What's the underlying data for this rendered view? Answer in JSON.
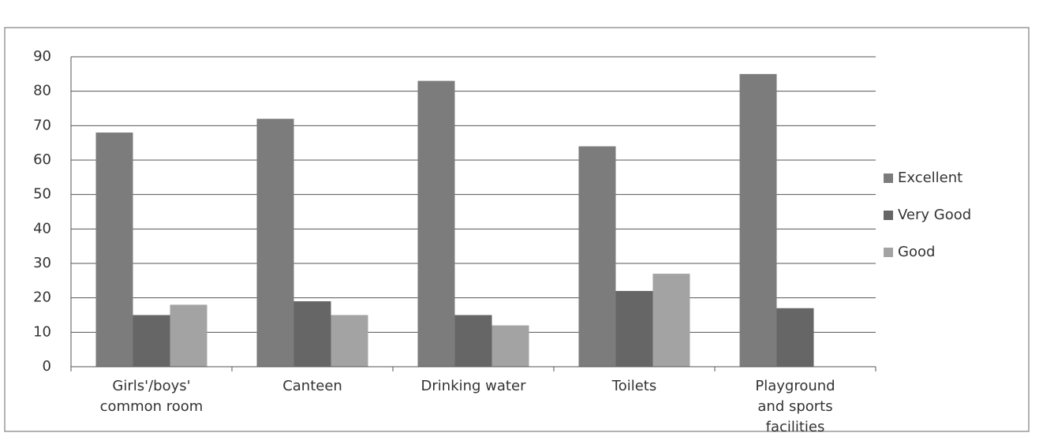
{
  "chart_data": {
    "type": "bar",
    "categories": [
      "Girls'/boys' common room",
      "Canteen",
      "Drinking water",
      "Toilets",
      "Playground and sports facilities"
    ],
    "series": [
      {
        "name": "Excellent",
        "color": "#7c7c7c",
        "values": [
          68,
          72,
          83,
          64,
          85
        ]
      },
      {
        "name": "Very Good",
        "color": "#666666",
        "values": [
          15,
          19,
          15,
          22,
          17
        ]
      },
      {
        "name": "Good",
        "color": "#a3a3a3",
        "values": [
          18,
          15,
          12,
          27,
          null
        ]
      }
    ],
    "ylim": [
      0,
      90
    ],
    "yticks": [
      0,
      10,
      20,
      30,
      40,
      50,
      60,
      70,
      80,
      90
    ],
    "grid": true,
    "legend": "right"
  }
}
